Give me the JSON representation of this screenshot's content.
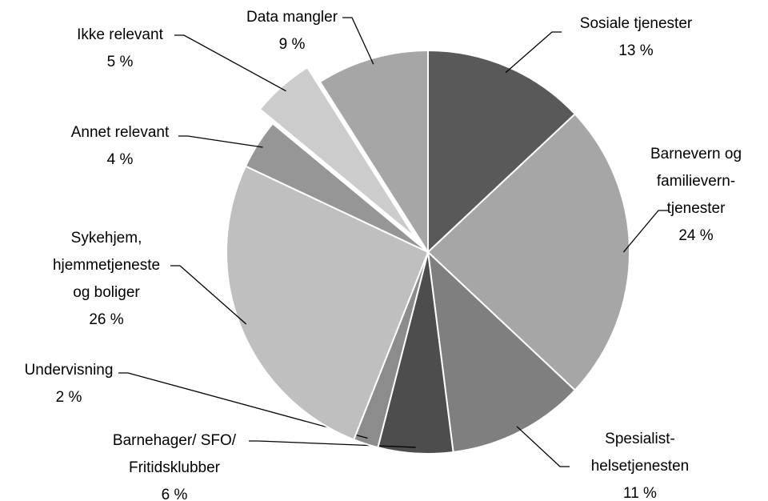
{
  "chart_data": {
    "type": "pie",
    "categories": [
      [
        "Sosiale tjenester"
      ],
      [
        "Barnevern og",
        "familievern-",
        "tjenester"
      ],
      [
        "Spesialist-",
        "helsetjenesten"
      ],
      [
        "Barnehager/ SFO/",
        "Fritidsklubber"
      ],
      [
        "Undervisning"
      ],
      [
        "Sykehjem,",
        "hjemmetjeneste",
        "og boliger"
      ],
      [
        "Annet relevant"
      ],
      [
        "Ikke relevant"
      ],
      [
        "Data mangler"
      ]
    ],
    "values": [
      13,
      24,
      11,
      6,
      2,
      26,
      4,
      5,
      9
    ],
    "value_labels": [
      "13 %",
      "24 %",
      "11 %",
      "6 %",
      "2 %",
      "26 %",
      "4 %",
      "5 %",
      "9 %"
    ],
    "colors": [
      "#595959",
      "#a6a6a6",
      "#7f7f7f",
      "#4d4d4d",
      "#8c8c8c",
      "#bfbfbf",
      "#969696",
      "#cccccc",
      "#a6a6a6"
    ]
  }
}
